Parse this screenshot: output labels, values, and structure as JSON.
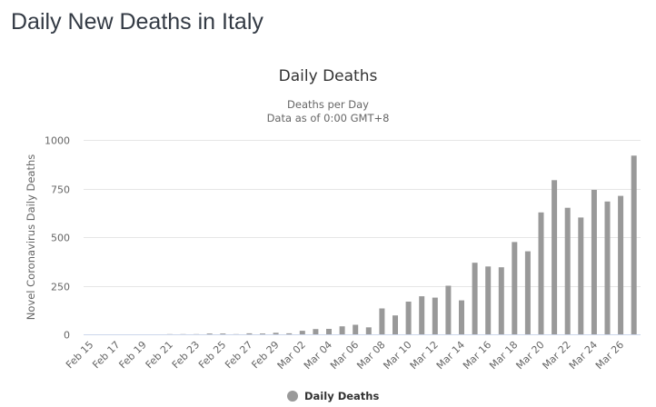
{
  "page": {
    "title": "Daily New Deaths in Italy"
  },
  "chart": {
    "title": "Daily Deaths",
    "subtitle_line1": "Deaths per Day",
    "subtitle_line2": "Data as of 0:00 GMT+8",
    "y_axis_title": "Novel Coronavirus Daily Deaths",
    "legend_label": "Daily Deaths",
    "bar_color": "#999999",
    "grid_color": "#e6e6e6",
    "axis_line_color": "#ccd6eb"
  },
  "chart_data": {
    "type": "bar",
    "title": "Daily Deaths",
    "subtitle": "Deaths per Day / Data as of 0:00 GMT+8",
    "xlabel": "",
    "ylabel": "Novel Coronavirus Daily Deaths",
    "ylim": [
      0,
      1000
    ],
    "yticks": [
      0,
      250,
      500,
      750,
      1000
    ],
    "grid": true,
    "legend_position": "bottom",
    "categories": [
      "Feb 15",
      "Feb 16",
      "Feb 17",
      "Feb 18",
      "Feb 19",
      "Feb 20",
      "Feb 21",
      "Feb 22",
      "Feb 23",
      "Feb 24",
      "Feb 25",
      "Feb 26",
      "Feb 27",
      "Feb 28",
      "Feb 29",
      "Mar 01",
      "Mar 02",
      "Mar 03",
      "Mar 04",
      "Mar 05",
      "Mar 06",
      "Mar 07",
      "Mar 08",
      "Mar 09",
      "Mar 10",
      "Mar 11",
      "Mar 12",
      "Mar 13",
      "Mar 14",
      "Mar 15",
      "Mar 16",
      "Mar 17",
      "Mar 18",
      "Mar 19",
      "Mar 20",
      "Mar 21",
      "Mar 22",
      "Mar 23",
      "Mar 24",
      "Mar 25",
      "Mar 26",
      "Mar 27"
    ],
    "tick_labels": [
      "Feb 15",
      "Feb 17",
      "Feb 19",
      "Feb 21",
      "Feb 23",
      "Feb 25",
      "Feb 27",
      "Feb 29",
      "Mar 02",
      "Mar 04",
      "Mar 06",
      "Mar 08",
      "Mar 10",
      "Mar 12",
      "Mar 14",
      "Mar 16",
      "Mar 18",
      "Mar 20",
      "Mar 22",
      "Mar 24",
      "Mar 26"
    ],
    "series": [
      {
        "name": "Daily Deaths",
        "color": "#999999",
        "values": [
          0,
          0,
          0,
          0,
          0,
          0,
          1,
          1,
          1,
          4,
          4,
          1,
          5,
          4,
          8,
          5,
          18,
          27,
          28,
          41,
          49,
          36,
          133,
          97,
          168,
          196,
          189,
          250,
          175,
          368,
          349,
          345,
          475,
          427,
          627,
          793,
          651,
          601,
          743,
          683,
          712,
          919
        ]
      }
    ]
  }
}
